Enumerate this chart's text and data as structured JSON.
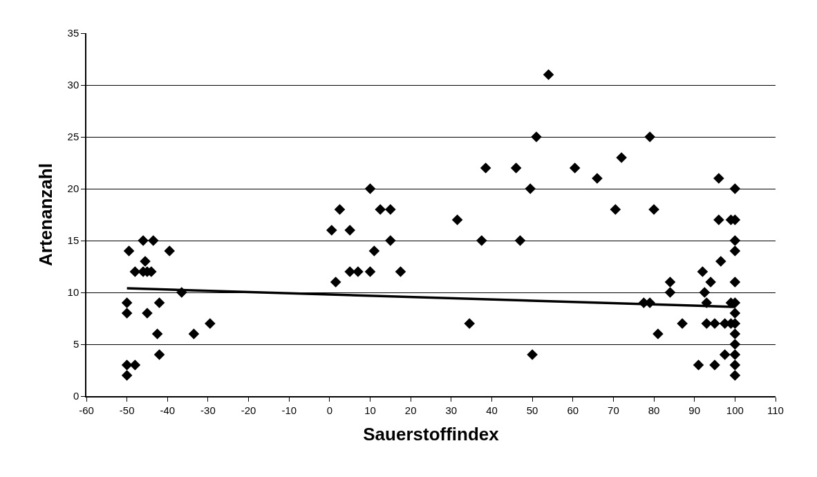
{
  "chart_data": {
    "type": "scatter",
    "xlabel": "Sauerstoffindex",
    "ylabel": "Artenanzahl",
    "xlim": [
      -60,
      110
    ],
    "xticks": [
      -60,
      -50,
      -40,
      -30,
      -20,
      -10,
      0,
      10,
      20,
      30,
      40,
      50,
      60,
      70,
      80,
      90,
      100,
      110
    ],
    "ylim": [
      0,
      35
    ],
    "yticks": [
      0,
      5,
      10,
      15,
      20,
      25,
      30,
      35
    ],
    "grid": "y",
    "marker": "diamond",
    "series": [
      {
        "color": "#000000",
        "x": [
          -50,
          -50,
          -50,
          -50,
          -49.5,
          -48,
          -48,
          -46,
          -46,
          -45.5,
          -45,
          -45,
          -44,
          -43.5,
          -42.5,
          -42,
          -42,
          -39.5,
          -36.5,
          -33.5,
          -29.5,
          0.5,
          1.5,
          2.5,
          5,
          5,
          7,
          10,
          10,
          11,
          12.5,
          15,
          15,
          17.5,
          31.5,
          34.5,
          37.5,
          38.5,
          46,
          47,
          49.5,
          50,
          51,
          54,
          60.5,
          66,
          70.5,
          72,
          77.5,
          79,
          79,
          80,
          81,
          84,
          84,
          87,
          91,
          92,
          92.5,
          93,
          93,
          94,
          95,
          95,
          96,
          96,
          96.5,
          97.5,
          97.5,
          99,
          99,
          99,
          100,
          100,
          100,
          100,
          100,
          100,
          100,
          100,
          100,
          100,
          100,
          100,
          100
        ],
        "values": [
          9,
          8,
          3,
          2,
          14,
          12,
          3,
          12,
          15,
          13,
          12,
          8,
          12,
          15,
          6,
          4,
          9,
          14,
          10,
          6,
          7,
          16,
          11,
          18,
          16,
          12,
          12,
          20,
          12,
          14,
          18,
          18,
          15,
          12,
          17,
          7,
          15,
          22,
          22,
          15,
          20,
          4,
          25,
          31,
          22,
          21,
          18,
          23,
          9,
          9,
          25,
          18,
          6,
          11,
          10,
          7,
          3,
          12,
          10,
          7,
          9,
          11,
          3,
          7,
          21,
          17,
          13,
          7,
          4,
          17,
          9,
          7,
          20,
          17,
          15,
          14,
          11,
          8,
          7,
          6,
          5,
          4,
          3,
          2,
          9
        ]
      },
      {
        "type": "line",
        "color": "#000000",
        "marker": "none",
        "x": [
          -50,
          100
        ],
        "values": [
          10.4,
          8.6
        ]
      }
    ]
  }
}
